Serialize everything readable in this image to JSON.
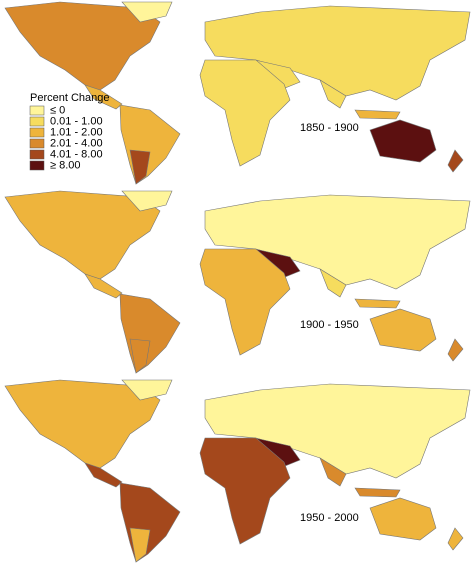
{
  "legend": {
    "title": "Percent Change",
    "items": [
      {
        "label": "≤ 0",
        "color": "#fff59a"
      },
      {
        "label": "0.01 - 1.00",
        "color": "#f6dc5e"
      },
      {
        "label": "1.01 - 2.00",
        "color": "#eeb43c"
      },
      {
        "label": "2.01 - 4.00",
        "color": "#d98a2c"
      },
      {
        "label": "4.01 - 8.00",
        "color": "#a4481c"
      },
      {
        "label": "≥ 8.00",
        "color": "#5c1010"
      }
    ]
  },
  "panels": [
    {
      "label": "1850 - 1900"
    },
    {
      "label": "1900 - 1950"
    },
    {
      "label": "1950 - 2000"
    }
  ]
}
